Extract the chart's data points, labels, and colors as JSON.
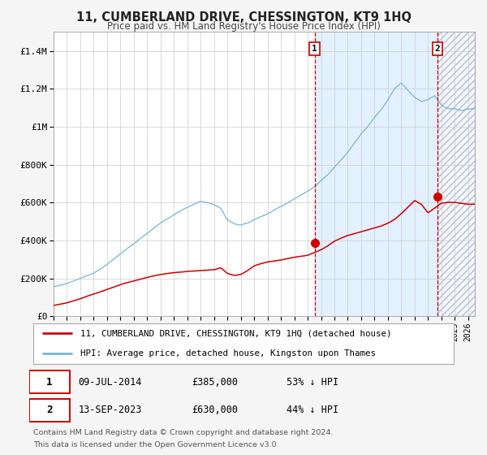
{
  "title": "11, CUMBERLAND DRIVE, CHESSINGTON, KT9 1HQ",
  "subtitle": "Price paid vs. HM Land Registry's House Price Index (HPI)",
  "ylim": [
    0,
    1500000
  ],
  "xlim_start": 1995.0,
  "xlim_end": 2026.5,
  "hpi_color": "#7ab3d4",
  "property_color": "#cc0000",
  "background_color": "#f5f5f5",
  "plot_bg_color": "#ffffff",
  "shade_color": "#ddeeff",
  "grid_color": "#cccccc",
  "transaction1_date": 2014.52,
  "transaction1_price": 385000,
  "transaction2_date": 2023.71,
  "transaction2_price": 630000,
  "legend_red_label": "11, CUMBERLAND DRIVE, CHESSINGTON, KT9 1HQ (detached house)",
  "legend_blue_label": "HPI: Average price, detached house, Kingston upon Thames",
  "ann1_date": "09-JUL-2014",
  "ann1_price": "£385,000",
  "ann1_pct": "53% ↓ HPI",
  "ann2_date": "13-SEP-2023",
  "ann2_price": "£630,000",
  "ann2_pct": "44% ↓ HPI",
  "footer_line1": "Contains HM Land Registry data © Crown copyright and database right 2024.",
  "footer_line2": "This data is licensed under the Open Government Licence v3.0.",
  "yticks": [
    0,
    200000,
    400000,
    600000,
    800000,
    1000000,
    1200000,
    1400000
  ],
  "ytick_labels": [
    "£0",
    "£200K",
    "£400K",
    "£600K",
    "£800K",
    "£1M",
    "£1.2M",
    "£1.4M"
  ],
  "hpi_anchors_t": [
    0,
    1,
    2,
    3,
    4,
    5,
    6,
    7,
    8,
    9,
    10,
    11,
    12,
    12.5,
    13,
    13.5,
    14,
    14.5,
    15,
    16,
    17,
    18,
    19,
    19.5,
    20,
    20.5,
    21,
    21.5,
    22,
    22.5,
    23,
    23.5,
    24,
    24.5,
    25,
    25.5,
    26,
    26.5,
    27,
    27.5,
    28,
    28.5,
    29,
    29.5,
    30,
    30.5,
    31
  ],
  "hpi_anchors_v": [
    155000,
    170000,
    195000,
    225000,
    275000,
    330000,
    385000,
    440000,
    490000,
    535000,
    575000,
    610000,
    590000,
    570000,
    510000,
    490000,
    480000,
    490000,
    510000,
    540000,
    580000,
    620000,
    660000,
    685000,
    720000,
    750000,
    790000,
    830000,
    870000,
    920000,
    970000,
    1010000,
    1060000,
    1100000,
    1150000,
    1210000,
    1240000,
    1200000,
    1160000,
    1140000,
    1150000,
    1170000,
    1120000,
    1100000,
    1100000,
    1090000,
    1100000
  ],
  "prop_anchors_t": [
    0,
    1,
    2,
    3,
    4,
    5,
    6,
    7,
    8,
    9,
    10,
    11,
    12,
    12.5,
    13,
    13.5,
    14,
    14.5,
    15,
    16,
    17,
    18,
    19,
    19.5,
    20,
    20.5,
    21,
    21.5,
    22,
    22.5,
    23,
    23.5,
    24,
    24.5,
    25,
    25.5,
    26,
    26.5,
    27,
    27.5,
    28,
    28.5,
    29,
    29.5,
    30,
    30.5,
    31
  ],
  "prop_anchors_v": [
    57000,
    70000,
    90000,
    115000,
    140000,
    165000,
    185000,
    205000,
    220000,
    230000,
    235000,
    240000,
    245000,
    255000,
    225000,
    215000,
    220000,
    240000,
    265000,
    285000,
    295000,
    310000,
    320000,
    335000,
    350000,
    370000,
    395000,
    410000,
    425000,
    435000,
    445000,
    455000,
    465000,
    475000,
    490000,
    510000,
    540000,
    575000,
    610000,
    590000,
    545000,
    570000,
    595000,
    600000,
    600000,
    595000,
    590000
  ]
}
